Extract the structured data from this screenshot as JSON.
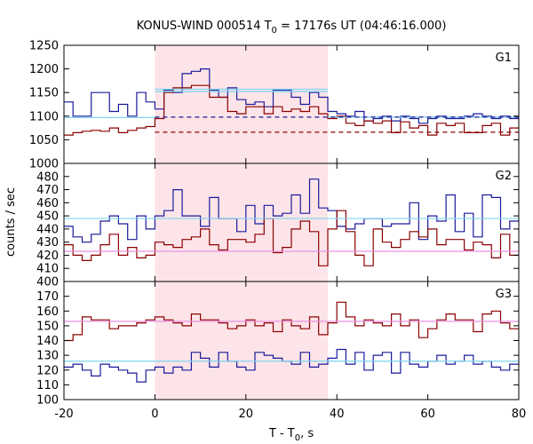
{
  "chart_data": {
    "type": "line",
    "title": {
      "pre": "KONUS-WIND 000514 T",
      "sub": "0",
      "post": " = 17176s UT (04:46:16.000)"
    },
    "xlabel": {
      "pre": "T - T",
      "sub": "0",
      "post": ", s"
    },
    "ylabel": "counts / sec",
    "xlim": [
      -20,
      80
    ],
    "xticks": [
      -20,
      0,
      20,
      40,
      60,
      80
    ],
    "shaded_interval": [
      0,
      38
    ],
    "colors": {
      "blue": "#1a1a9c",
      "red": "#8b0000",
      "cyan": "#7fd4f0",
      "pink": "#e890e0",
      "shade": "#fde4e8"
    },
    "bin_edges": [
      -20,
      -18,
      -16,
      -14,
      -12,
      -10,
      -8,
      -6,
      -4,
      -2,
      0,
      2,
      4,
      6,
      8,
      10,
      12,
      14,
      16,
      18,
      20,
      22,
      24,
      26,
      28,
      30,
      32,
      34,
      36,
      38,
      40,
      42,
      44,
      46,
      48,
      50,
      52,
      54,
      56,
      58,
      60,
      62,
      64,
      66,
      68,
      70,
      72,
      74,
      76,
      78,
      80
    ],
    "panels": [
      {
        "label": "G1",
        "ylim": [
          1000,
          1250
        ],
        "yticks": [
          1000,
          1050,
          1100,
          1150,
          1200,
          1250
        ],
        "series": [
          {
            "color": "blue",
            "values": [
              1130,
              1100,
              1100,
              1150,
              1150,
              1110,
              1125,
              1100,
              1150,
              1130,
              1115,
              1155,
              1150,
              1190,
              1195,
              1200,
              1155,
              1140,
              1160,
              1135,
              1125,
              1130,
              1120,
              1155,
              1155,
              1140,
              1125,
              1150,
              1140,
              1110,
              1105,
              1100,
              1110,
              1090,
              1095,
              1100,
              1090,
              1100,
              1095,
              1085,
              1095,
              1100,
              1095,
              1095,
              1100,
              1105,
              1100,
              1095,
              1100,
              1095
            ]
          },
          {
            "color": "red",
            "values": [
              1060,
              1065,
              1068,
              1070,
              1068,
              1075,
              1065,
              1070,
              1075,
              1078,
              1095,
              1150,
              1160,
              1160,
              1165,
              1165,
              1140,
              1140,
              1110,
              1105,
              1120,
              1120,
              1105,
              1120,
              1110,
              1115,
              1110,
              1120,
              1105,
              1095,
              1100,
              1085,
              1080,
              1090,
              1085,
              1090,
              1065,
              1088,
              1075,
              1080,
              1060,
              1085,
              1080,
              1085,
              1065,
              1065,
              1080,
              1085,
              1060,
              1075
            ]
          }
        ],
        "segments": [
          {
            "color": "cyan",
            "style": "solid",
            "x": [
              -20,
              0
            ],
            "y": 1097
          },
          {
            "color": "cyan",
            "style": "solid",
            "x": [
              0,
              38
            ],
            "y": 1157
          },
          {
            "color": "cyan",
            "style": "solid",
            "x": [
              0,
              38
            ],
            "y": 1152
          },
          {
            "color": "cyan",
            "style": "solid",
            "x": [
              38,
              80
            ],
            "y": 1098
          },
          {
            "color": "blue",
            "style": "dashed",
            "x": [
              0,
              80
            ],
            "y": 1098
          },
          {
            "color": "red",
            "style": "dashed",
            "x": [
              0,
              80
            ],
            "y": 1066
          }
        ]
      },
      {
        "label": "G2",
        "ylim": [
          400,
          490
        ],
        "yticks": [
          400,
          410,
          420,
          430,
          440,
          450,
          460,
          470,
          480
        ],
        "series": [
          {
            "color": "blue",
            "values": [
              442,
              434,
              430,
              436,
              446,
              450,
              444,
              432,
              450,
              440,
              450,
              454,
              470,
              450,
              450,
              442,
              464,
              448,
              448,
              438,
              458,
              444,
              458,
              450,
              452,
              466,
              452,
              478,
              456,
              454,
              442,
              440,
              444,
              448,
              448,
              442,
              444,
              444,
              460,
              432,
              450,
              446,
              466,
              438,
              452,
              434,
              466,
              464,
              440,
              446
            ]
          },
          {
            "color": "red",
            "values": [
              428,
              420,
              416,
              420,
              428,
              436,
              420,
              426,
              418,
              420,
              430,
              428,
              426,
              432,
              434,
              440,
              428,
              424,
              432,
              432,
              430,
              436,
              448,
              422,
              426,
              440,
              446,
              438,
              412,
              440,
              454,
              438,
              420,
              412,
              440,
              430,
              426,
              432,
              438,
              434,
              440,
              428,
              432,
              432,
              424,
              430,
              428,
              418,
              436,
              420
            ]
          }
        ],
        "segments": [
          {
            "color": "cyan",
            "style": "solid",
            "x": [
              -20,
              80
            ],
            "y": 448
          },
          {
            "color": "pink",
            "style": "solid",
            "x": [
              -20,
              80
            ],
            "y": 423
          }
        ]
      },
      {
        "label": "G3",
        "ylim": [
          100,
          180
        ],
        "yticks": [
          100,
          110,
          120,
          130,
          140,
          150,
          160,
          170
        ],
        "series": [
          {
            "color": "blue",
            "values": [
              122,
              124,
              120,
              116,
              124,
              122,
              120,
              118,
              112,
              120,
              122,
              118,
              122,
              120,
              132,
              128,
              122,
              132,
              126,
              122,
              120,
              132,
              130,
              128,
              126,
              124,
              132,
              122,
              124,
              128,
              134,
              124,
              132,
              120,
              130,
              132,
              118,
              132,
              124,
              122,
              126,
              130,
              124,
              126,
              130,
              124,
              126,
              122,
              120,
              124
            ]
          },
          {
            "color": "red",
            "values": [
              140,
              144,
              156,
              154,
              154,
              148,
              150,
              150,
              152,
              154,
              156,
              154,
              152,
              150,
              158,
              154,
              154,
              152,
              148,
              150,
              154,
              150,
              152,
              146,
              154,
              150,
              148,
              156,
              144,
              152,
              166,
              156,
              150,
              154,
              152,
              150,
              158,
              150,
              154,
              142,
              148,
              154,
              158,
              154,
              154,
              146,
              158,
              160,
              152,
              148
            ]
          }
        ],
        "segments": [
          {
            "color": "cyan",
            "style": "solid",
            "x": [
              -20,
              80
            ],
            "y": 126
          },
          {
            "color": "pink",
            "style": "solid",
            "x": [
              -20,
              80
            ],
            "y": 153
          }
        ]
      }
    ]
  }
}
